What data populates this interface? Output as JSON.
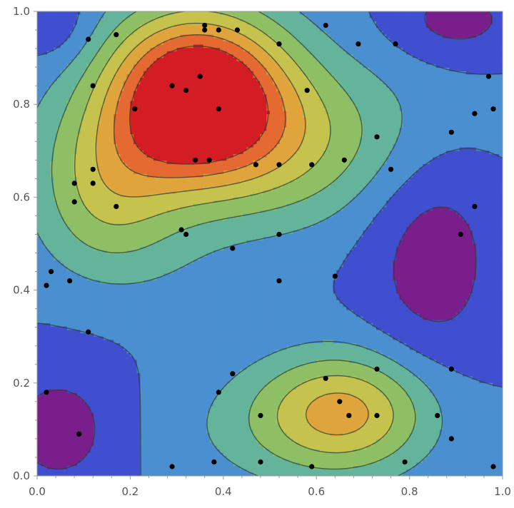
{
  "chart_data": {
    "type": "contour",
    "title": "",
    "xlabel": "",
    "ylabel": "",
    "xlim": [
      0,
      1
    ],
    "ylim": [
      0,
      1
    ],
    "x_ticks": [
      "0.0",
      "0.2",
      "0.4",
      "0.6",
      "0.8",
      "1.0"
    ],
    "y_ticks": [
      "0.0",
      "0.2",
      "0.4",
      "0.6",
      "0.8",
      "1.0"
    ],
    "grid": false,
    "legend": "none",
    "colormap": [
      "#7a1e8c",
      "#3f4fcf",
      "#4a8fcf",
      "#64b49c",
      "#8fbf64",
      "#c6c24e",
      "#e0a43c",
      "#e46a32",
      "#d41c24"
    ],
    "point_color": "#000000",
    "points": [
      {
        "x": 0.36,
        "y": 0.97
      },
      {
        "x": 0.36,
        "y": 0.96
      },
      {
        "x": 0.39,
        "y": 0.96
      },
      {
        "x": 0.43,
        "y": 0.96
      },
      {
        "x": 0.62,
        "y": 0.97
      },
      {
        "x": 0.69,
        "y": 0.93
      },
      {
        "x": 0.77,
        "y": 0.93
      },
      {
        "x": 0.52,
        "y": 0.93
      },
      {
        "x": 0.11,
        "y": 0.94
      },
      {
        "x": 0.17,
        "y": 0.95
      },
      {
        "x": 0.12,
        "y": 0.84
      },
      {
        "x": 0.35,
        "y": 0.86
      },
      {
        "x": 0.29,
        "y": 0.84
      },
      {
        "x": 0.32,
        "y": 0.83
      },
      {
        "x": 0.58,
        "y": 0.83
      },
      {
        "x": 0.97,
        "y": 0.86
      },
      {
        "x": 0.21,
        "y": 0.79
      },
      {
        "x": 0.39,
        "y": 0.79
      },
      {
        "x": 0.94,
        "y": 0.78
      },
      {
        "x": 0.98,
        "y": 0.79
      },
      {
        "x": 0.73,
        "y": 0.73
      },
      {
        "x": 0.89,
        "y": 0.74
      },
      {
        "x": 0.34,
        "y": 0.68
      },
      {
        "x": 0.37,
        "y": 0.68
      },
      {
        "x": 0.66,
        "y": 0.68
      },
      {
        "x": 0.47,
        "y": 0.67
      },
      {
        "x": 0.52,
        "y": 0.67
      },
      {
        "x": 0.59,
        "y": 0.67
      },
      {
        "x": 0.12,
        "y": 0.66
      },
      {
        "x": 0.76,
        "y": 0.66
      },
      {
        "x": 0.08,
        "y": 0.63
      },
      {
        "x": 0.12,
        "y": 0.63
      },
      {
        "x": 0.08,
        "y": 0.59
      },
      {
        "x": 0.17,
        "y": 0.58
      },
      {
        "x": 0.94,
        "y": 0.58
      },
      {
        "x": 0.31,
        "y": 0.53
      },
      {
        "x": 0.32,
        "y": 0.52
      },
      {
        "x": 0.52,
        "y": 0.52
      },
      {
        "x": 0.91,
        "y": 0.52
      },
      {
        "x": 0.42,
        "y": 0.49
      },
      {
        "x": 0.03,
        "y": 0.44
      },
      {
        "x": 0.64,
        "y": 0.43
      },
      {
        "x": 0.07,
        "y": 0.42
      },
      {
        "x": 0.52,
        "y": 0.42
      },
      {
        "x": 0.02,
        "y": 0.41
      },
      {
        "x": 0.11,
        "y": 0.31
      },
      {
        "x": 0.73,
        "y": 0.23
      },
      {
        "x": 0.89,
        "y": 0.23
      },
      {
        "x": 0.42,
        "y": 0.22
      },
      {
        "x": 0.62,
        "y": 0.21
      },
      {
        "x": 0.02,
        "y": 0.18
      },
      {
        "x": 0.39,
        "y": 0.18
      },
      {
        "x": 0.65,
        "y": 0.16
      },
      {
        "x": 0.48,
        "y": 0.13
      },
      {
        "x": 0.67,
        "y": 0.13
      },
      {
        "x": 0.73,
        "y": 0.13
      },
      {
        "x": 0.86,
        "y": 0.13
      },
      {
        "x": 0.09,
        "y": 0.09
      },
      {
        "x": 0.89,
        "y": 0.08
      },
      {
        "x": 0.38,
        "y": 0.03
      },
      {
        "x": 0.48,
        "y": 0.03
      },
      {
        "x": 0.79,
        "y": 0.03
      },
      {
        "x": 0.29,
        "y": 0.02
      },
      {
        "x": 0.59,
        "y": 0.02
      },
      {
        "x": 0.98,
        "y": 0.02
      }
    ]
  }
}
